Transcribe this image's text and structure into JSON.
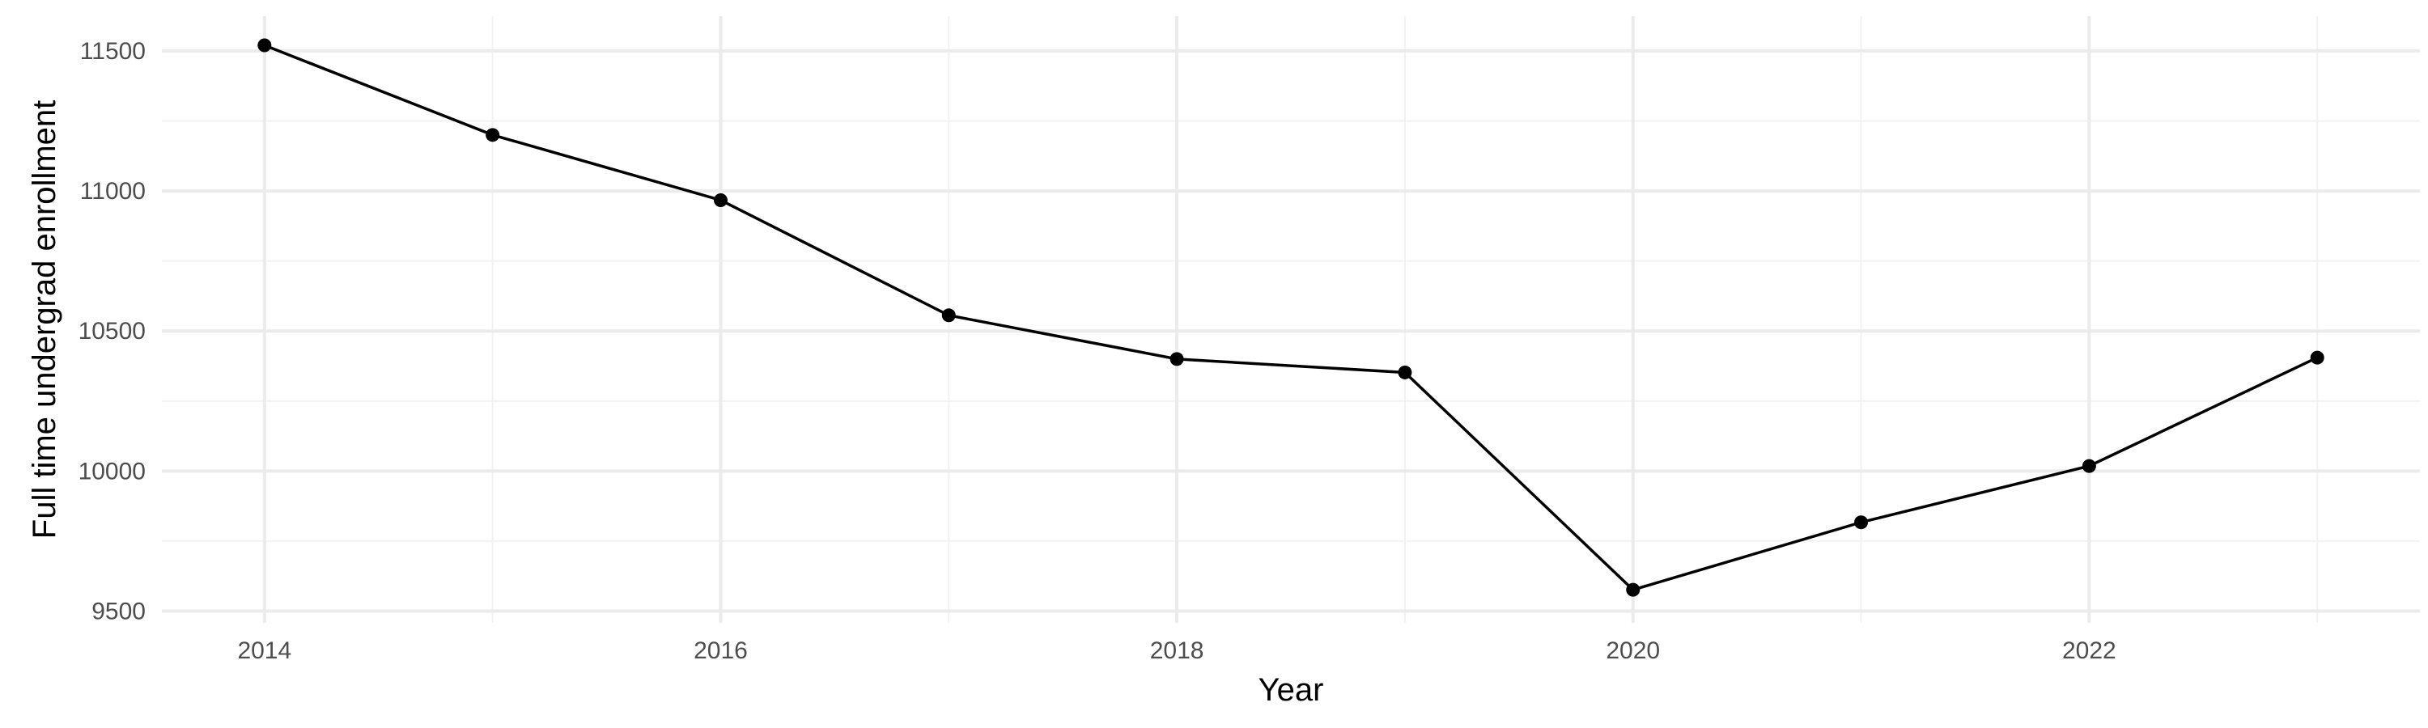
{
  "chart_data": {
    "type": "line",
    "title": "",
    "xlabel": "Year",
    "ylabel": "Full time undergrad enrollment",
    "x": [
      2014,
      2015,
      2016,
      2017,
      2018,
      2019,
      2020,
      2021,
      2022,
      2023
    ],
    "series": [
      {
        "values": [
          11520,
          11200,
          10967,
          10556,
          10400,
          10352,
          9576,
          9817,
          10018,
          10405
        ],
        "color": "#000000"
      }
    ],
    "x_ticks": [
      "2014",
      "2016",
      "2018",
      "2020",
      "2022"
    ],
    "y_ticks": [
      "9500",
      "10000",
      "10500",
      "11000",
      "11500"
    ],
    "xlim": [
      2013.55,
      2023.45
    ],
    "ylim": [
      9458,
      11624
    ],
    "grid": true,
    "legend": "none"
  }
}
